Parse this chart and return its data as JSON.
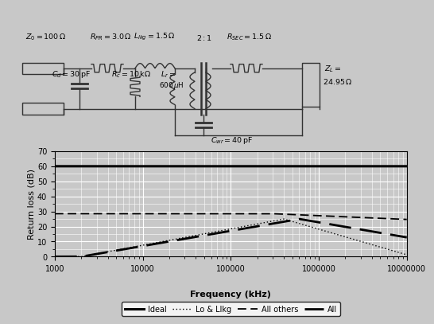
{
  "xlabel": "Frequency (kHz)",
  "ylabel": "Return loss (dB)",
  "ylim": [
    0,
    70
  ],
  "yticks": [
    0,
    10,
    20,
    30,
    40,
    50,
    60,
    70
  ],
  "xtick_labels": [
    "1000",
    "10000",
    "100000",
    "1000000",
    "10000000"
  ],
  "bg_color": "#c8c8c8",
  "ideal_db": 60.0,
  "all_others_flat": 28.5,
  "legend_labels": [
    "Ideal",
    "Lo & Llkg",
    "All others",
    "All"
  ]
}
